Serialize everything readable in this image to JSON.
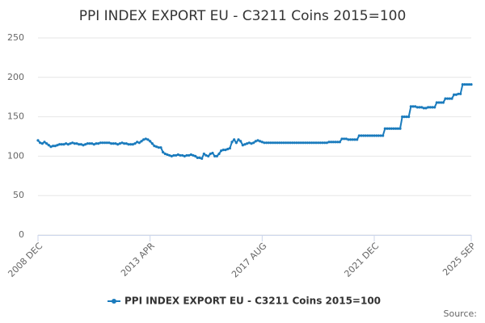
{
  "chart_data": {
    "type": "line",
    "title": "PPI INDEX EXPORT EU - C3211 Coins 2015=100",
    "source": "Source:",
    "categories": [
      "2008 DEC",
      null,
      null,
      null,
      null,
      null,
      null,
      null,
      null,
      null,
      null,
      null,
      null,
      null,
      null,
      null,
      null,
      null,
      null,
      null,
      null,
      null,
      null,
      null,
      null,
      null,
      null,
      null,
      null,
      null,
      null,
      null,
      null,
      null,
      null,
      null,
      null,
      null,
      null,
      null,
      null,
      null,
      null,
      null,
      null,
      null,
      null,
      null,
      null,
      null,
      null,
      null,
      "2013 APR",
      null,
      null,
      null,
      null,
      null,
      null,
      null,
      null,
      null,
      null,
      null,
      null,
      null,
      null,
      null,
      null,
      null,
      null,
      null,
      null,
      null,
      null,
      null,
      null,
      null,
      null,
      null,
      null,
      null,
      null,
      null,
      null,
      null,
      null,
      null,
      null,
      null,
      null,
      null,
      null,
      null,
      null,
      null,
      null,
      null,
      null,
      null,
      null,
      null,
      null,
      null,
      "2017 AUG",
      null,
      null,
      null,
      null,
      null,
      null,
      null,
      null,
      null,
      null,
      null,
      null,
      null,
      null,
      null,
      null,
      null,
      null,
      null,
      null,
      null,
      null,
      null,
      null,
      null,
      null,
      null,
      null,
      null,
      null,
      null,
      null,
      null,
      null,
      null,
      null,
      null,
      null,
      null,
      null,
      null,
      null,
      null,
      null,
      null,
      null,
      null,
      null,
      null,
      null,
      null,
      "2021 DEC",
      null,
      null,
      null,
      null,
      null,
      null,
      null,
      null,
      null,
      null,
      null,
      null,
      null,
      null,
      null,
      null,
      null,
      null,
      null,
      null,
      null,
      null,
      null,
      null,
      null,
      null,
      null,
      null,
      null,
      null,
      null,
      null,
      null,
      null,
      null,
      null,
      null,
      null,
      null,
      null,
      null,
      null,
      null,
      null,
      "2025 SEP"
    ],
    "series": [
      {
        "name": "PPI INDEX EXPORT EU - C3211 Coins 2015=100",
        "color": "#1a7bbd",
        "values": [
          120,
          117,
          116,
          118,
          116,
          114,
          112,
          113,
          113,
          114,
          115,
          115,
          115,
          116,
          115,
          116,
          117,
          116,
          116,
          115,
          115,
          114,
          115,
          116,
          116,
          116,
          115,
          116,
          116,
          117,
          117,
          117,
          117,
          117,
          116,
          116,
          116,
          115,
          116,
          117,
          116,
          116,
          115,
          115,
          115,
          116,
          118,
          117,
          119,
          121,
          122,
          121,
          119,
          116,
          113,
          112,
          111,
          111,
          105,
          103,
          102,
          101,
          100,
          101,
          101,
          102,
          101,
          101,
          100,
          101,
          101,
          102,
          101,
          100,
          98,
          98,
          97,
          103,
          101,
          100,
          103,
          104,
          100,
          100,
          103,
          107,
          108,
          108,
          109,
          110,
          118,
          121,
          117,
          121,
          119,
          114,
          115,
          116,
          117,
          116,
          117,
          119,
          120,
          119,
          118,
          117,
          117,
          117,
          117,
          117,
          117,
          117,
          117,
          117,
          117,
          117,
          117,
          117,
          117,
          117,
          117,
          117,
          117,
          117,
          117,
          117,
          117,
          117,
          117,
          117,
          117,
          117,
          117,
          117,
          117,
          118,
          118,
          118,
          118,
          118,
          118,
          122,
          122,
          122,
          121,
          121,
          121,
          121,
          121,
          126,
          126,
          126,
          126,
          126,
          126,
          126,
          126,
          126,
          126,
          126,
          126,
          135,
          135,
          135,
          135,
          135,
          135,
          135,
          135,
          150,
          150,
          150,
          150,
          163,
          163,
          163,
          162,
          162,
          162,
          161,
          161,
          162,
          162,
          162,
          162,
          168,
          168,
          168,
          168,
          173,
          173,
          173,
          173,
          178,
          178,
          179,
          179,
          191,
          191,
          191,
          191,
          191
        ]
      }
    ],
    "ylim": [
      0,
      250
    ],
    "yticks": [
      0,
      50,
      100,
      150,
      200,
      250
    ],
    "grid": true,
    "legend": "bottom"
  }
}
